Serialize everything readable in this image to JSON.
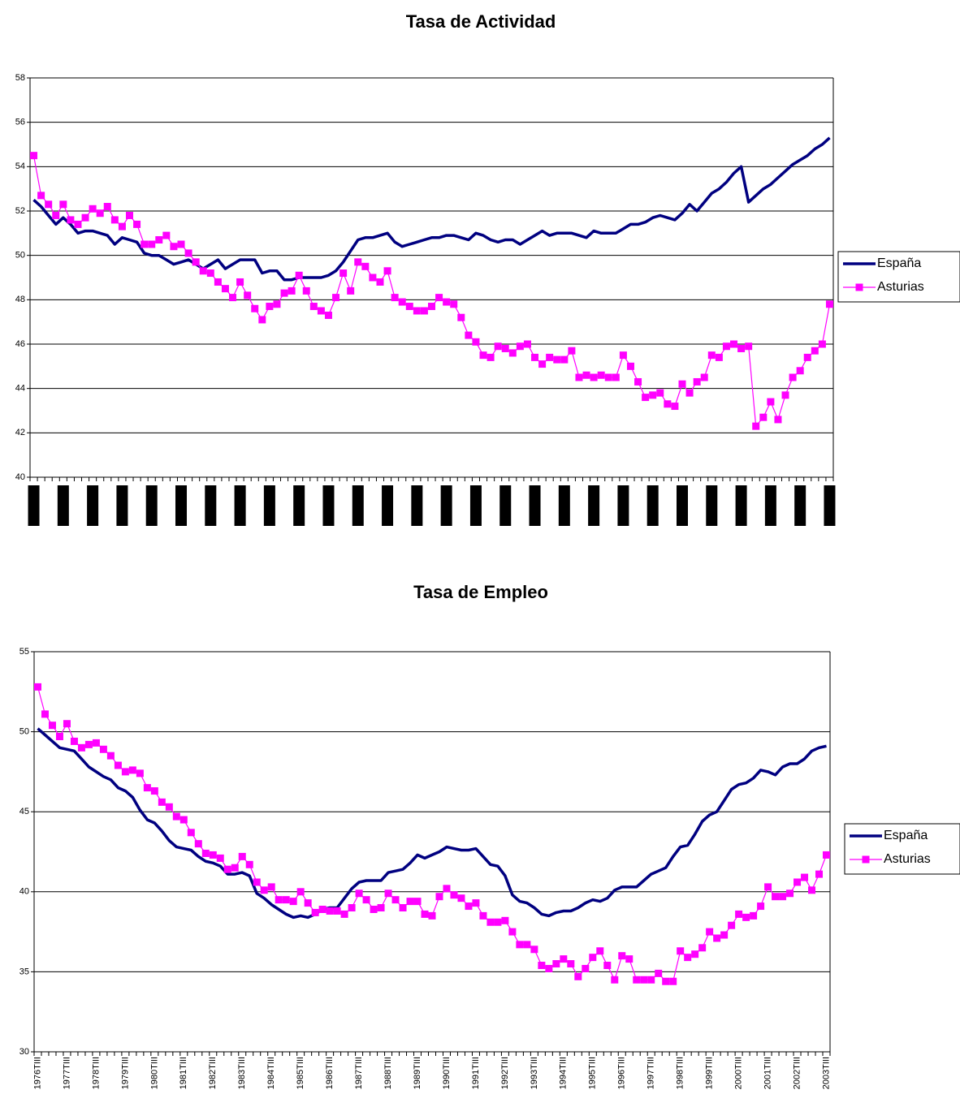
{
  "chart_data": [
    {
      "type": "line",
      "title": "Tasa de Actividad",
      "ylim": [
        40,
        58
      ],
      "yticks": [
        40,
        42,
        44,
        46,
        48,
        50,
        52,
        54,
        56,
        58
      ],
      "grid": true,
      "legend": "right",
      "series": [
        {
          "name": "España",
          "color": "#000080",
          "values": [
            52.5,
            52.2,
            51.8,
            51.4,
            51.7,
            51.4,
            51.0,
            51.1,
            51.1,
            51.0,
            50.9,
            50.5,
            50.8,
            50.7,
            50.6,
            50.1,
            50.0,
            50.0,
            49.8,
            49.6,
            49.7,
            49.8,
            49.6,
            49.4,
            49.6,
            49.8,
            49.4,
            49.6,
            49.8,
            49.8,
            49.8,
            49.2,
            49.3,
            49.3,
            48.9,
            48.9,
            49.0,
            49.0,
            49.0,
            49.0,
            49.1,
            49.3,
            49.7,
            50.2,
            50.7,
            50.8,
            50.8,
            50.9,
            51.0,
            50.6,
            50.4,
            50.5,
            50.6,
            50.7,
            50.8,
            50.8,
            50.9,
            50.9,
            50.8,
            50.7,
            51.0,
            50.9,
            50.7,
            50.6,
            50.7,
            50.7,
            50.5,
            50.7,
            50.9,
            51.1,
            50.9,
            51.0,
            51.0,
            51.0,
            50.9,
            50.8,
            51.1,
            51.0,
            51.0,
            51.0,
            51.2,
            51.4,
            51.4,
            51.5,
            51.7,
            51.8,
            51.7,
            51.6,
            51.9,
            52.3,
            52.0,
            52.4,
            52.8,
            53.0,
            53.3,
            53.7,
            54.0,
            52.4,
            52.7,
            53.0,
            53.2,
            53.5,
            53.8,
            54.1,
            54.3,
            54.5,
            54.8,
            55.0,
            55.3
          ]
        },
        {
          "name": "Asturias",
          "color": "#ff00ff",
          "marker": "square",
          "values": [
            54.5,
            52.7,
            52.3,
            51.8,
            52.3,
            51.6,
            51.4,
            51.7,
            52.1,
            51.9,
            52.2,
            51.6,
            51.3,
            51.8,
            51.4,
            50.5,
            50.5,
            50.7,
            50.9,
            50.4,
            50.5,
            50.1,
            49.7,
            49.3,
            49.2,
            48.8,
            48.5,
            48.1,
            48.8,
            48.2,
            47.6,
            47.1,
            47.7,
            47.8,
            48.3,
            48.4,
            49.1,
            48.4,
            47.7,
            47.5,
            47.3,
            48.1,
            49.2,
            48.4,
            49.7,
            49.5,
            49.0,
            48.8,
            49.3,
            48.1,
            47.9,
            47.7,
            47.5,
            47.5,
            47.7,
            48.1,
            47.9,
            47.8,
            47.2,
            46.4,
            46.1,
            45.5,
            45.4,
            45.9,
            45.8,
            45.6,
            45.9,
            46.0,
            45.4,
            45.1,
            45.4,
            45.3,
            45.3,
            45.7,
            44.5,
            44.6,
            44.5,
            44.6,
            44.5,
            44.5,
            45.5,
            45.0,
            44.3,
            43.6,
            43.7,
            43.8,
            43.3,
            43.2,
            44.2,
            43.8,
            44.3,
            44.5,
            45.5,
            45.4,
            45.9,
            46.0,
            45.8,
            45.9,
            42.3,
            42.7,
            43.4,
            42.6,
            43.7,
            44.5,
            44.8,
            45.4,
            45.7,
            46.0,
            47.8
          ]
        }
      ]
    },
    {
      "type": "line",
      "title": "Tasa de Empleo",
      "categories": [
        "1976TIII",
        null,
        null,
        null,
        "1977TIII",
        null,
        null,
        null,
        "1978TIII",
        null,
        null,
        null,
        "1979TIII",
        null,
        null,
        null,
        "1980TIII",
        null,
        null,
        null,
        "1981TIII",
        null,
        null,
        null,
        "1982TIII",
        null,
        null,
        null,
        "1983TIII",
        null,
        null,
        null,
        "1984TIII",
        null,
        null,
        null,
        "1985TIII",
        null,
        null,
        null,
        "1986TIII",
        null,
        null,
        null,
        "1987TIII",
        null,
        null,
        null,
        "1988TIII",
        null,
        null,
        null,
        "1989TIII",
        null,
        null,
        null,
        "1990TIII",
        null,
        null,
        null,
        "1991TIII",
        null,
        null,
        null,
        "1992TIII",
        null,
        null,
        null,
        "1993TIII",
        null,
        null,
        null,
        "1994TIII",
        null,
        null,
        null,
        "1995TIII",
        null,
        null,
        null,
        "1996TIII",
        null,
        null,
        null,
        "1997TIII",
        null,
        null,
        null,
        "1998TIII",
        null,
        null,
        null,
        "1999TIII",
        null,
        null,
        null,
        "2000TIII",
        null,
        null,
        null,
        "2001TIII",
        null,
        null,
        null,
        "2002TIII",
        null,
        null,
        null,
        "2003TIII"
      ],
      "ylim": [
        30,
        55
      ],
      "yticks": [
        30,
        35,
        40,
        45,
        50,
        55
      ],
      "grid": true,
      "legend": "right",
      "series": [
        {
          "name": "España",
          "color": "#000080",
          "values": [
            50.2,
            49.8,
            49.4,
            49.0,
            48.9,
            48.8,
            48.3,
            47.8,
            47.5,
            47.2,
            47.0,
            46.5,
            46.3,
            45.9,
            45.1,
            44.5,
            44.3,
            43.8,
            43.2,
            42.8,
            42.7,
            42.6,
            42.2,
            41.9,
            41.8,
            41.6,
            41.1,
            41.1,
            41.2,
            41.0,
            39.9,
            39.6,
            39.2,
            38.9,
            38.6,
            38.4,
            38.5,
            38.4,
            38.6,
            38.9,
            39.0,
            39.0,
            39.6,
            40.2,
            40.6,
            40.7,
            40.7,
            40.7,
            41.2,
            41.3,
            41.4,
            41.8,
            42.3,
            42.1,
            42.3,
            42.5,
            42.8,
            42.7,
            42.6,
            42.6,
            42.7,
            42.2,
            41.7,
            41.6,
            41.0,
            39.8,
            39.4,
            39.3,
            39.0,
            38.6,
            38.5,
            38.7,
            38.8,
            38.8,
            39.0,
            39.3,
            39.5,
            39.4,
            39.6,
            40.1,
            40.3,
            40.3,
            40.3,
            40.7,
            41.1,
            41.3,
            41.5,
            42.2,
            42.8,
            42.9,
            43.6,
            44.4,
            44.8,
            45.0,
            45.7,
            46.4,
            46.7,
            46.8,
            47.1,
            47.6,
            47.5,
            47.3,
            47.8,
            48.0,
            48.0,
            48.3,
            48.8,
            49.0,
            49.1
          ]
        },
        {
          "name": "Asturias",
          "color": "#ff00ff",
          "marker": "square",
          "values": [
            52.8,
            51.1,
            50.4,
            49.7,
            50.5,
            49.4,
            49.0,
            49.2,
            49.3,
            48.9,
            48.5,
            47.9,
            47.5,
            47.6,
            47.4,
            46.5,
            46.3,
            45.6,
            45.3,
            44.7,
            44.5,
            43.7,
            43.0,
            42.4,
            42.3,
            42.1,
            41.4,
            41.5,
            42.2,
            41.7,
            40.6,
            40.1,
            40.3,
            39.5,
            39.5,
            39.4,
            40.0,
            39.3,
            38.7,
            38.9,
            38.8,
            38.8,
            38.6,
            39.0,
            39.9,
            39.5,
            38.9,
            39.0,
            39.9,
            39.5,
            39.0,
            39.4,
            39.4,
            38.6,
            38.5,
            39.7,
            40.2,
            39.8,
            39.6,
            39.1,
            39.3,
            38.5,
            38.1,
            38.1,
            38.2,
            37.5,
            36.7,
            36.7,
            36.4,
            35.4,
            35.2,
            35.5,
            35.8,
            35.5,
            34.7,
            35.2,
            35.9,
            36.3,
            35.4,
            34.5,
            36.0,
            35.8,
            34.5,
            34.5,
            34.5,
            34.9,
            34.4,
            34.4,
            36.3,
            35.9,
            36.1,
            36.5,
            37.5,
            37.1,
            37.3,
            37.9,
            38.6,
            38.4,
            38.5,
            39.1,
            40.3,
            39.7,
            39.7,
            39.9,
            40.6,
            40.9,
            40.1,
            41.1,
            42.3
          ]
        }
      ]
    }
  ]
}
